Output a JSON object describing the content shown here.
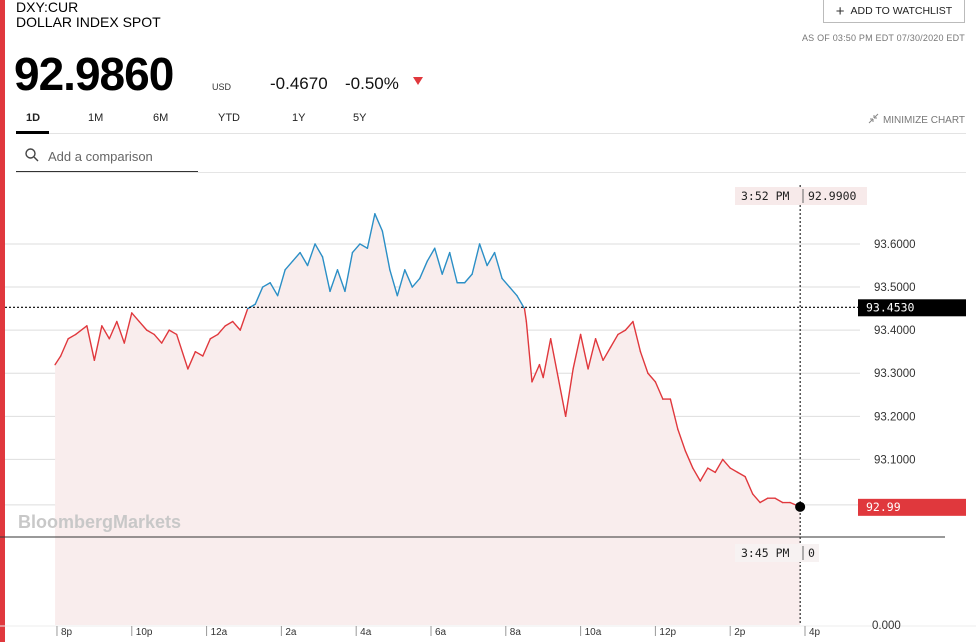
{
  "header": {
    "ticker": "DXY:CUR",
    "name": "DOLLAR INDEX SPOT",
    "watchlist_label": "ADD TO WATCHLIST",
    "as_of": "AS OF 03:50 PM EDT 07/30/2020 EDT"
  },
  "quote": {
    "price": "92.9860",
    "currency": "USD",
    "change": "-0.4670",
    "change_pct": "-0.50%",
    "direction": "down"
  },
  "tabs": [
    {
      "label": "1D",
      "active": true
    },
    {
      "label": "1M",
      "active": false
    },
    {
      "label": "6M",
      "active": false
    },
    {
      "label": "YTD",
      "active": false
    },
    {
      "label": "1Y",
      "active": false
    },
    {
      "label": "5Y",
      "active": false
    }
  ],
  "minimize_label": "MINIMIZE CHART",
  "search": {
    "placeholder": "Add a comparison"
  },
  "colors": {
    "up": "#2b8fc6",
    "down": "#e0383d",
    "fill": "#f9eded",
    "accent": "#e0383d"
  },
  "chart_data": {
    "type": "line",
    "watermark": "BloombergMarkets",
    "y_ticks": [
      "93.6000",
      "93.5000",
      "93.4000",
      "93.3000",
      "93.2000",
      "93.1000"
    ],
    "y_tick_values": [
      93.6,
      93.5,
      93.4,
      93.3,
      93.2,
      93.1
    ],
    "volume_axis_label": "0.000",
    "ylim": [
      92.92,
      93.76
    ],
    "x_ticks": [
      "8p",
      "10p",
      "12a",
      "2a",
      "4a",
      "6a",
      "8a",
      "10a",
      "12p",
      "2p",
      "4p"
    ],
    "x_tick_hours": [
      20,
      22,
      24,
      26,
      28,
      30,
      32,
      34,
      36,
      38,
      40
    ],
    "xlim": [
      19.68,
      40.67
    ],
    "prev_close": {
      "value": 93.453,
      "label": "93.4530"
    },
    "last": {
      "value": 92.99,
      "label": "92.99"
    },
    "crosshair": {
      "time_label": "3:52 PM",
      "value_label": "92.9900",
      "volume_time_label": "3:45 PM",
      "volume_value": "0",
      "hour": 39.87
    },
    "series": [
      {
        "x": [
          19.95,
          20.1,
          20.3,
          20.5,
          20.8,
          21.0,
          21.2,
          21.4,
          21.6,
          21.8,
          22.0,
          22.2,
          22.4,
          22.6,
          22.8,
          23.0,
          23.2,
          23.5,
          23.7,
          23.9,
          24.1,
          24.3,
          24.5,
          24.7,
          24.9,
          25.1,
          25.3,
          25.5,
          25.7,
          25.9,
          26.1,
          26.3,
          26.5,
          26.7,
          26.9,
          27.1,
          27.3,
          27.5,
          27.7,
          27.9,
          28.1,
          28.3,
          28.5,
          28.7,
          28.9,
          29.1,
          29.3,
          29.5,
          29.7,
          29.9,
          30.1,
          30.3,
          30.5,
          30.7,
          30.9,
          31.1,
          31.3,
          31.5,
          31.7,
          31.9,
          32.1,
          32.3,
          32.5,
          32.55,
          32.7,
          32.9,
          33.0,
          33.2,
          33.4,
          33.6,
          33.8,
          34.0,
          34.2,
          34.4,
          34.6,
          34.8,
          35.0,
          35.2,
          35.4,
          35.6,
          35.8,
          36.0,
          36.2,
          36.4,
          36.6,
          36.8,
          37.0,
          37.2,
          37.4,
          37.6,
          37.8,
          38.0,
          38.2,
          38.4,
          38.6,
          38.8,
          39.0,
          39.2,
          39.4,
          39.6,
          39.87
        ],
        "y": [
          93.32,
          93.34,
          93.38,
          93.39,
          93.41,
          93.33,
          93.41,
          93.38,
          93.42,
          93.37,
          93.44,
          93.42,
          93.4,
          93.39,
          93.37,
          93.4,
          93.39,
          93.31,
          93.35,
          93.34,
          93.38,
          93.39,
          93.41,
          93.42,
          93.4,
          93.45,
          93.46,
          93.5,
          93.51,
          93.48,
          93.54,
          93.56,
          93.58,
          93.55,
          93.6,
          93.57,
          93.49,
          93.54,
          93.49,
          93.58,
          93.6,
          93.59,
          93.67,
          93.63,
          93.54,
          93.48,
          93.54,
          93.5,
          93.52,
          93.56,
          93.59,
          93.53,
          93.58,
          93.51,
          93.51,
          93.53,
          93.6,
          93.55,
          93.58,
          93.52,
          93.5,
          93.48,
          93.45,
          93.42,
          93.28,
          93.32,
          93.29,
          93.38,
          93.29,
          93.2,
          93.31,
          93.39,
          93.31,
          93.38,
          93.33,
          93.36,
          93.39,
          93.4,
          93.42,
          93.35,
          93.3,
          93.28,
          93.24,
          93.24,
          93.17,
          93.12,
          93.08,
          93.05,
          93.08,
          93.07,
          93.1,
          93.08,
          93.07,
          93.06,
          93.02,
          93.0,
          93.01,
          93.01,
          93.0,
          93.0,
          92.99
        ]
      }
    ]
  }
}
